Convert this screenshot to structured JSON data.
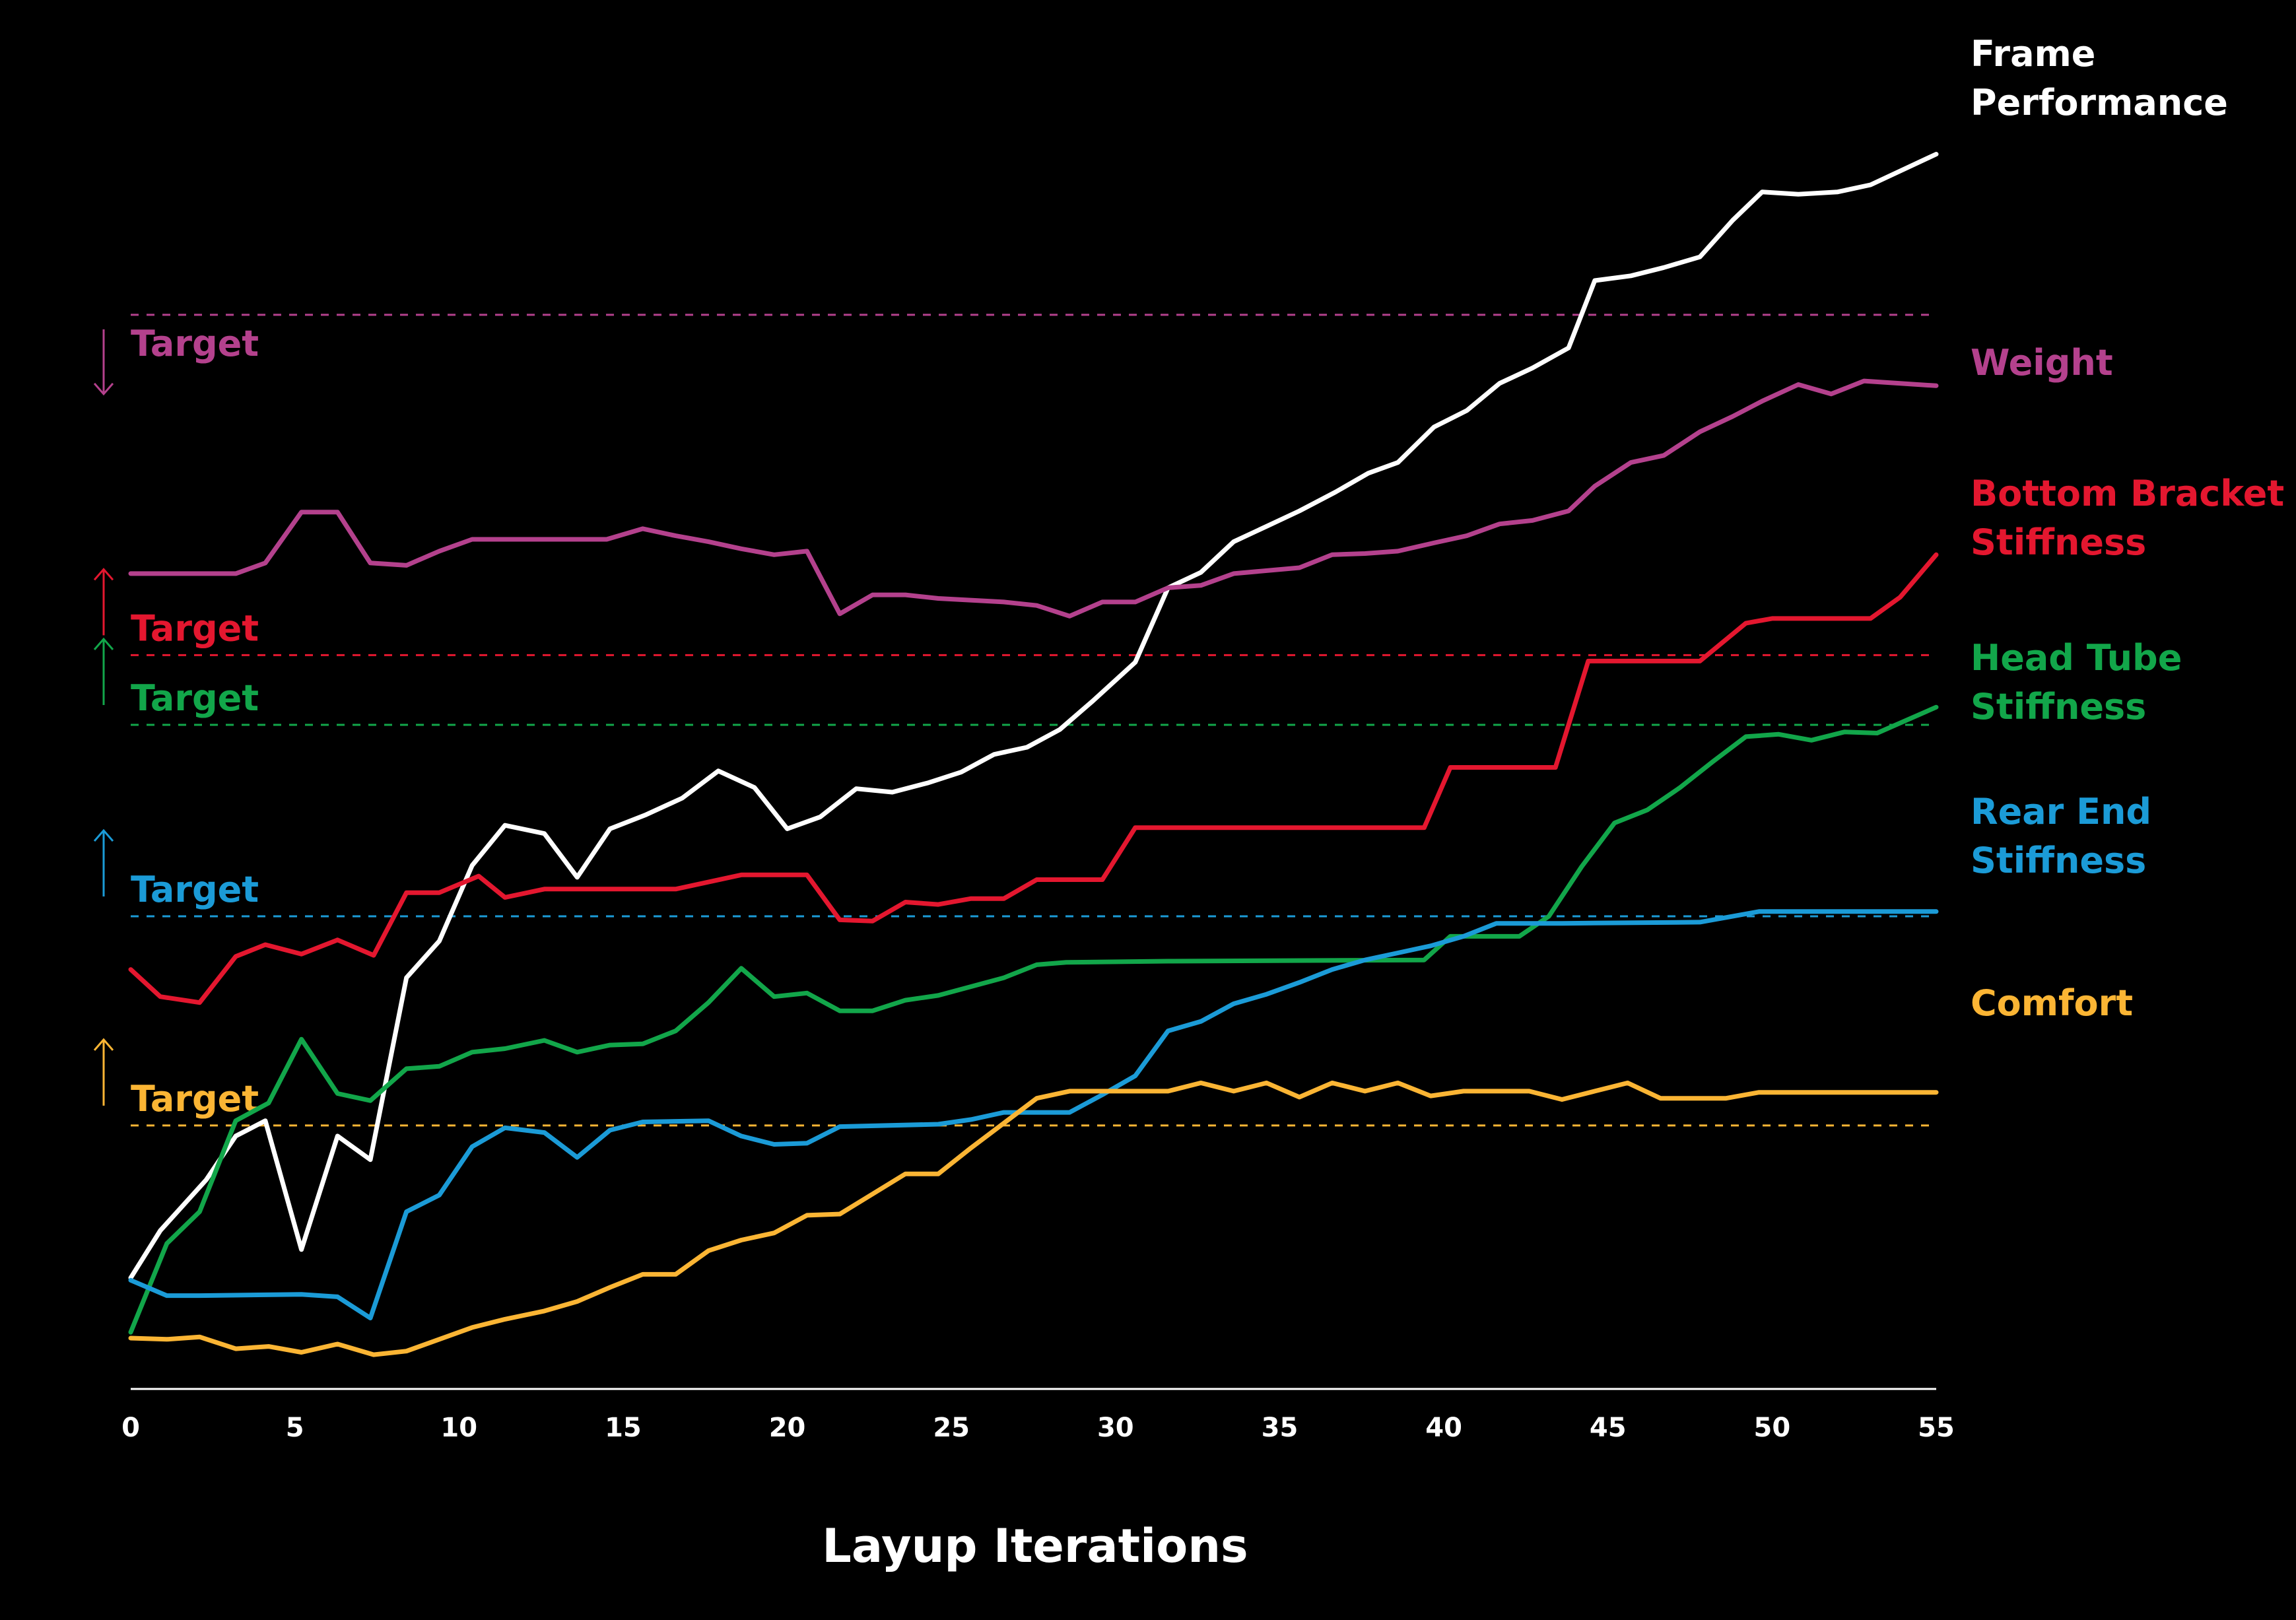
{
  "chart_data": {
    "type": "line",
    "title": "",
    "xlabel": "Layup Iterations",
    "ylabel": "",
    "xlim": [
      0,
      55
    ],
    "ylim": [
      0,
      100
    ],
    "x_ticks": [
      0,
      5,
      10,
      15,
      20,
      25,
      30,
      35,
      40,
      45,
      50,
      55
    ],
    "grid": false,
    "legend": "series labels at right end of lines",
    "series": [
      {
        "name": "Frame Performance",
        "label_lines": [
          "Frame",
          "Performance"
        ],
        "color": "#ffffff",
        "points": [
          [
            0,
            9.4
          ],
          [
            0.9,
            13.4
          ],
          [
            2.3,
            17.7
          ],
          [
            3.2,
            21.4
          ],
          [
            4.1,
            22.7
          ],
          [
            5.2,
            11.8
          ],
          [
            6.3,
            21.4
          ],
          [
            7.3,
            19.4
          ],
          [
            8.4,
            34.8
          ],
          [
            9.4,
            37.9
          ],
          [
            10.4,
            44.3
          ],
          [
            11.4,
            47.7
          ],
          [
            12.6,
            47.0
          ],
          [
            13.6,
            43.3
          ],
          [
            14.6,
            47.4
          ],
          [
            15.7,
            48.6
          ],
          [
            16.8,
            50.0
          ],
          [
            17.9,
            52.3
          ],
          [
            19.0,
            50.9
          ],
          [
            20.0,
            47.4
          ],
          [
            21.0,
            48.4
          ],
          [
            22.1,
            50.8
          ],
          [
            23.2,
            50.5
          ],
          [
            24.3,
            51.3
          ],
          [
            25.3,
            52.2
          ],
          [
            26.3,
            53.7
          ],
          [
            27.3,
            54.3
          ],
          [
            28.3,
            55.8
          ],
          [
            29.3,
            58.2
          ],
          [
            30.6,
            61.5
          ],
          [
            31.6,
            67.8
          ],
          [
            32.6,
            69.1
          ],
          [
            33.6,
            71.7
          ],
          [
            34.6,
            73.0
          ],
          [
            35.6,
            74.3
          ],
          [
            36.7,
            75.9
          ],
          [
            37.7,
            77.5
          ],
          [
            38.6,
            78.4
          ],
          [
            39.7,
            81.4
          ],
          [
            40.7,
            82.8
          ],
          [
            41.7,
            85.1
          ],
          [
            42.7,
            86.4
          ],
          [
            43.8,
            88.1
          ],
          [
            44.6,
            93.8
          ],
          [
            45.7,
            94.2
          ],
          [
            46.7,
            94.9
          ],
          [
            47.8,
            95.8
          ],
          [
            48.8,
            98.9
          ],
          [
            49.7,
            101.3
          ],
          [
            50.8,
            101.1
          ],
          [
            52.0,
            101.3
          ],
          [
            53.0,
            101.9
          ],
          [
            55.0,
            104.5
          ]
        ]
      },
      {
        "name": "Weight",
        "label_lines": [
          "Weight"
        ],
        "color": "#b4418d",
        "points": [
          [
            0,
            69.0
          ],
          [
            1.1,
            69.0
          ],
          [
            3.2,
            69.0
          ],
          [
            4.1,
            69.9
          ],
          [
            5.2,
            74.2
          ],
          [
            6.3,
            74.2
          ],
          [
            7.3,
            69.9
          ],
          [
            8.4,
            69.7
          ],
          [
            9.4,
            70.9
          ],
          [
            10.4,
            71.9
          ],
          [
            11.4,
            71.9
          ],
          [
            14.5,
            71.9
          ],
          [
            15.6,
            72.8
          ],
          [
            16.6,
            72.2
          ],
          [
            17.6,
            71.7
          ],
          [
            18.6,
            71.1
          ],
          [
            19.6,
            70.6
          ],
          [
            20.6,
            70.9
          ],
          [
            21.6,
            65.6
          ],
          [
            22.6,
            67.2
          ],
          [
            23.6,
            67.2
          ],
          [
            24.6,
            66.9
          ],
          [
            26.6,
            66.6
          ],
          [
            27.6,
            66.3
          ],
          [
            28.6,
            65.4
          ],
          [
            29.6,
            66.6
          ],
          [
            30.6,
            66.6
          ],
          [
            31.6,
            67.8
          ],
          [
            32.6,
            68.0
          ],
          [
            33.6,
            69.0
          ],
          [
            35.6,
            69.5
          ],
          [
            36.6,
            70.6
          ],
          [
            37.6,
            70.7
          ],
          [
            38.6,
            70.9
          ],
          [
            39.7,
            71.6
          ],
          [
            40.7,
            72.2
          ],
          [
            41.7,
            73.2
          ],
          [
            42.7,
            73.5
          ],
          [
            43.8,
            74.3
          ],
          [
            44.6,
            76.4
          ],
          [
            45.7,
            78.4
          ],
          [
            46.7,
            79.0
          ],
          [
            47.8,
            81.0
          ],
          [
            48.8,
            82.3
          ],
          [
            49.7,
            83.6
          ],
          [
            50.8,
            85.0
          ],
          [
            51.8,
            84.2
          ],
          [
            52.8,
            85.3
          ],
          [
            55.0,
            84.9
          ]
        ]
      },
      {
        "name": "Bottom Bracket Stiffness",
        "label_lines": [
          "Bottom Bracket",
          "Stiffness"
        ],
        "color": "#e4172f",
        "points": [
          [
            0,
            35.5
          ],
          [
            0.9,
            33.2
          ],
          [
            2.1,
            32.7
          ],
          [
            3.2,
            36.6
          ],
          [
            4.1,
            37.6
          ],
          [
            5.2,
            36.8
          ],
          [
            6.3,
            38.0
          ],
          [
            7.4,
            36.7
          ],
          [
            8.4,
            42.0
          ],
          [
            9.4,
            42.0
          ],
          [
            10.6,
            43.4
          ],
          [
            11.4,
            41.6
          ],
          [
            12.6,
            42.3
          ],
          [
            14.5,
            42.3
          ],
          [
            16.6,
            42.3
          ],
          [
            17.6,
            42.9
          ],
          [
            18.6,
            43.5
          ],
          [
            20.6,
            43.5
          ],
          [
            21.6,
            39.7
          ],
          [
            22.6,
            39.6
          ],
          [
            23.6,
            41.2
          ],
          [
            24.6,
            41.0
          ],
          [
            25.6,
            41.5
          ],
          [
            26.6,
            41.5
          ],
          [
            27.6,
            43.1
          ],
          [
            28.6,
            43.1
          ],
          [
            29.6,
            43.1
          ],
          [
            30.6,
            47.5
          ],
          [
            31.6,
            47.5
          ],
          [
            39.4,
            47.5
          ],
          [
            40.2,
            52.6
          ],
          [
            43.4,
            52.6
          ],
          [
            44.4,
            61.6
          ],
          [
            47.8,
            61.6
          ],
          [
            49.2,
            64.8
          ],
          [
            50.0,
            65.2
          ],
          [
            51.0,
            65.2
          ],
          [
            52.0,
            65.2
          ],
          [
            53.0,
            65.2
          ],
          [
            53.9,
            67.0
          ],
          [
            55.0,
            70.6
          ]
        ]
      },
      {
        "name": "Head Tube Stiffness",
        "label_lines": [
          "Head Tube",
          "Stiffness"
        ],
        "color": "#12a64a",
        "points": [
          [
            0,
            4.8
          ],
          [
            1.1,
            12.3
          ],
          [
            2.1,
            15.0
          ],
          [
            3.2,
            22.7
          ],
          [
            4.2,
            24.2
          ],
          [
            5.2,
            29.6
          ],
          [
            6.3,
            25.0
          ],
          [
            7.3,
            24.4
          ],
          [
            8.4,
            27.1
          ],
          [
            9.4,
            27.3
          ],
          [
            10.4,
            28.5
          ],
          [
            11.4,
            28.8
          ],
          [
            12.6,
            29.5
          ],
          [
            13.6,
            28.5
          ],
          [
            14.6,
            29.1
          ],
          [
            15.6,
            29.2
          ],
          [
            16.6,
            30.3
          ],
          [
            17.6,
            32.7
          ],
          [
            18.6,
            35.6
          ],
          [
            19.6,
            33.2
          ],
          [
            20.6,
            33.5
          ],
          [
            21.6,
            32.0
          ],
          [
            22.6,
            32.0
          ],
          [
            23.6,
            32.9
          ],
          [
            24.6,
            33.3
          ],
          [
            26.6,
            34.8
          ],
          [
            27.6,
            35.9
          ],
          [
            28.5,
            36.1
          ],
          [
            31.6,
            36.2
          ],
          [
            39.4,
            36.3
          ],
          [
            40.2,
            38.3
          ],
          [
            42.3,
            38.3
          ],
          [
            43.2,
            40.0
          ],
          [
            44.2,
            44.2
          ],
          [
            45.2,
            47.9
          ],
          [
            46.2,
            49.0
          ],
          [
            47.2,
            50.9
          ],
          [
            48.2,
            53.1
          ],
          [
            49.2,
            55.2
          ],
          [
            50.2,
            55.4
          ],
          [
            51.2,
            54.9
          ],
          [
            52.2,
            55.6
          ],
          [
            53.2,
            55.5
          ],
          [
            55.0,
            57.7
          ]
        ]
      },
      {
        "name": "Rear End Stiffness",
        "label_lines": [
          "Rear End",
          "Stiffness"
        ],
        "color": "#1b9bd7",
        "points": [
          [
            0,
            9.2
          ],
          [
            1.1,
            7.9
          ],
          [
            2.1,
            7.9
          ],
          [
            5.2,
            8.0
          ],
          [
            6.3,
            7.8
          ],
          [
            7.3,
            6.0
          ],
          [
            8.4,
            15.0
          ],
          [
            9.4,
            16.4
          ],
          [
            10.4,
            20.5
          ],
          [
            11.4,
            22.1
          ],
          [
            12.6,
            21.7
          ],
          [
            13.6,
            19.6
          ],
          [
            14.6,
            21.9
          ],
          [
            15.6,
            22.6
          ],
          [
            17.6,
            22.7
          ],
          [
            18.6,
            21.4
          ],
          [
            19.6,
            20.7
          ],
          [
            20.6,
            20.8
          ],
          [
            21.6,
            22.2
          ],
          [
            24.6,
            22.4
          ],
          [
            25.6,
            22.8
          ],
          [
            26.6,
            23.4
          ],
          [
            27.6,
            23.4
          ],
          [
            28.6,
            23.4
          ],
          [
            29.6,
            24.9
          ],
          [
            30.6,
            26.5
          ],
          [
            31.6,
            30.3
          ],
          [
            32.6,
            31.1
          ],
          [
            33.6,
            32.6
          ],
          [
            34.6,
            33.4
          ],
          [
            35.6,
            34.4
          ],
          [
            36.6,
            35.5
          ],
          [
            37.6,
            36.3
          ],
          [
            38.6,
            36.9
          ],
          [
            39.6,
            37.5
          ],
          [
            40.6,
            38.3
          ],
          [
            41.6,
            39.4
          ],
          [
            42.6,
            39.4
          ],
          [
            43.6,
            39.4
          ],
          [
            47.8,
            39.5
          ],
          [
            48.6,
            39.9
          ],
          [
            49.6,
            40.4
          ],
          [
            50.6,
            40.4
          ],
          [
            55.0,
            40.4
          ]
        ]
      },
      {
        "name": "Comfort",
        "label_lines": [
          "Comfort"
        ],
        "color": "#fbb534",
        "points": [
          [
            0,
            4.3
          ],
          [
            1.1,
            4.2
          ],
          [
            2.1,
            4.4
          ],
          [
            3.2,
            3.4
          ],
          [
            4.2,
            3.6
          ],
          [
            5.2,
            3.1
          ],
          [
            6.3,
            3.8
          ],
          [
            7.4,
            2.9
          ],
          [
            8.4,
            3.2
          ],
          [
            9.4,
            4.2
          ],
          [
            10.4,
            5.2
          ],
          [
            11.4,
            5.9
          ],
          [
            12.6,
            6.6
          ],
          [
            13.6,
            7.4
          ],
          [
            14.6,
            8.6
          ],
          [
            15.6,
            9.7
          ],
          [
            16.6,
            9.7
          ],
          [
            17.6,
            11.7
          ],
          [
            18.6,
            12.6
          ],
          [
            19.6,
            13.2
          ],
          [
            20.6,
            14.7
          ],
          [
            21.6,
            14.8
          ],
          [
            22.6,
            16.5
          ],
          [
            23.6,
            18.2
          ],
          [
            24.6,
            18.2
          ],
          [
            25.6,
            20.4
          ],
          [
            26.6,
            22.5
          ],
          [
            27.6,
            24.6
          ],
          [
            28.6,
            25.2
          ],
          [
            29.6,
            25.2
          ],
          [
            30.6,
            25.2
          ],
          [
            31.6,
            25.2
          ],
          [
            32.6,
            25.9
          ],
          [
            33.6,
            25.2
          ],
          [
            34.6,
            25.9
          ],
          [
            35.6,
            24.7
          ],
          [
            36.6,
            25.9
          ],
          [
            37.6,
            25.2
          ],
          [
            38.6,
            25.9
          ],
          [
            39.6,
            24.8
          ],
          [
            40.6,
            25.2
          ],
          [
            42.6,
            25.2
          ],
          [
            43.6,
            24.5
          ],
          [
            44.6,
            25.2
          ],
          [
            45.6,
            25.9
          ],
          [
            46.6,
            24.6
          ],
          [
            47.6,
            24.6
          ],
          [
            48.6,
            24.6
          ],
          [
            49.6,
            25.1
          ],
          [
            55.0,
            25.1
          ]
        ]
      }
    ],
    "targets": [
      {
        "label": "Target",
        "series": "Weight",
        "value": 90.9,
        "color": "#b4418d",
        "direction": "down"
      },
      {
        "label": "Target",
        "series": "Bottom Bracket Stiffness",
        "value": 62.1,
        "color": "#e4172f",
        "direction": "up"
      },
      {
        "label": "Target",
        "series": "Head Tube Stiffness",
        "value": 56.2,
        "color": "#12a64a",
        "direction": "up"
      },
      {
        "label": "Target",
        "series": "Rear End Stiffness",
        "value": 40.0,
        "color": "#1b9bd7",
        "direction": "up"
      },
      {
        "label": "Target",
        "series": "Comfort",
        "value": 22.3,
        "color": "#fbb534",
        "direction": "up"
      }
    ]
  }
}
